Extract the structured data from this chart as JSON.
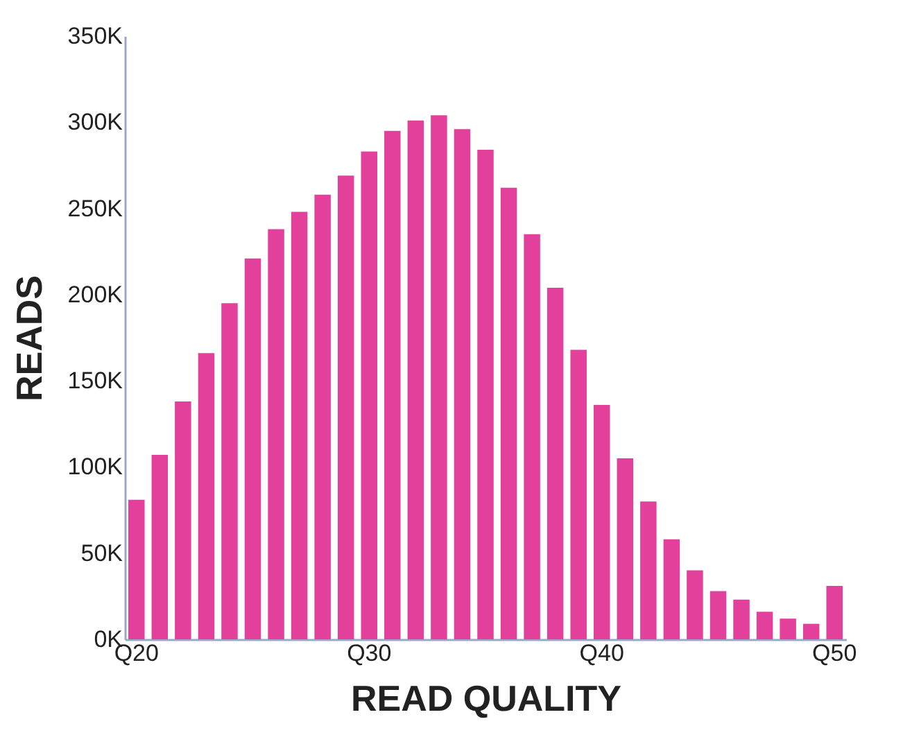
{
  "chart_data": {
    "type": "bar",
    "xlabel": "READ QUALITY",
    "ylabel": "READS",
    "categories": [
      "Q20",
      null,
      null,
      null,
      null,
      null,
      null,
      null,
      null,
      null,
      "Q30",
      null,
      null,
      null,
      null,
      null,
      null,
      null,
      null,
      null,
      "Q40",
      null,
      null,
      null,
      null,
      null,
      null,
      null,
      null,
      null,
      "Q50"
    ],
    "values": [
      81000,
      107000,
      138000,
      166000,
      195000,
      221000,
      238000,
      248000,
      258000,
      269000,
      283000,
      295000,
      301000,
      304000,
      296000,
      284000,
      262000,
      235000,
      204000,
      168000,
      136000,
      105000,
      80000,
      58000,
      40000,
      28000,
      23000,
      16000,
      12000,
      9000,
      31000
    ],
    "color": "#e2409a",
    "ylim": [
      0,
      350000
    ],
    "yticks": [
      {
        "value": 0,
        "label": "0K"
      },
      {
        "value": 50000,
        "label": "50K"
      },
      {
        "value": 100000,
        "label": "100K"
      },
      {
        "value": 150000,
        "label": "150K"
      },
      {
        "value": 200000,
        "label": "200K"
      },
      {
        "value": 250000,
        "label": "250K"
      },
      {
        "value": 300000,
        "label": "300K"
      },
      {
        "value": 350000,
        "label": "350K"
      }
    ],
    "grid": false
  }
}
